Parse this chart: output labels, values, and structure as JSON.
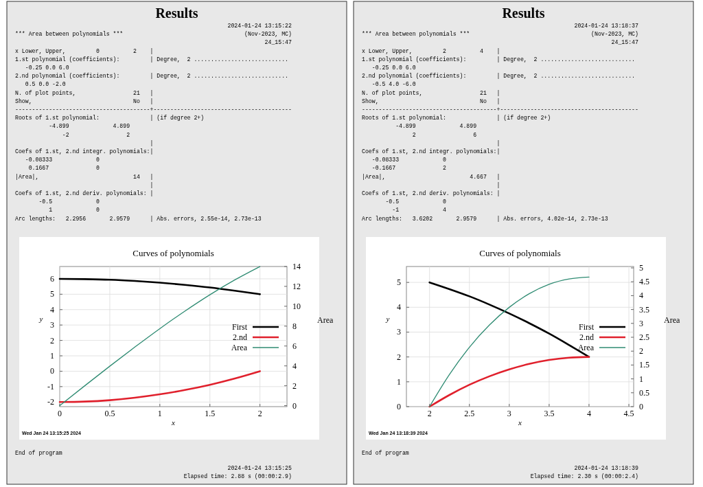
{
  "chart_data": [
    {
      "type": "line",
      "title": "Curves of polynomials",
      "xlabel": "x",
      "ylabel": "y",
      "y2label": "Area",
      "x": [
        0,
        0.25,
        0.5,
        0.75,
        1,
        1.25,
        1.5,
        1.75,
        2
      ],
      "series": [
        {
          "name": "First",
          "color": "#000000",
          "values": [
            6,
            5.98,
            5.94,
            5.86,
            5.75,
            5.61,
            5.44,
            5.23,
            5
          ]
        },
        {
          "name": "2.nd",
          "color": "#e0202c",
          "values": [
            -2,
            -1.97,
            -1.88,
            -1.72,
            -1.5,
            -1.22,
            -0.88,
            -0.47,
            0
          ]
        },
        {
          "name": "Area",
          "color": "#2e8b72",
          "axis": "y2",
          "values": [
            0,
            2,
            3.97,
            5.89,
            7.75,
            9.51,
            11.16,
            12.66,
            14
          ]
        }
      ],
      "xlim": [
        0,
        2.27
      ],
      "xticks": [
        0,
        0.5,
        1,
        1.5,
        2
      ],
      "ylim": [
        -2.3,
        6.8
      ],
      "yticks": [
        -2,
        -1,
        0,
        1,
        2,
        3,
        4,
        5,
        6
      ],
      "y2lim": [
        -0.1,
        14
      ],
      "y2ticks": [
        0,
        2,
        4,
        6,
        8,
        10,
        12,
        14
      ],
      "grid": true,
      "legend": "right",
      "annotations": [
        "Results",
        "                                                               2024-01-24 13:15:22",
        "*** Area between polynomials ***                                    (Nov-2023, MC)",
        "                                                                          24_15:47",
        "x Lower, Upper,         0          2    |",
        "1.st polynomial (coefficients):         | Degree,  2 ............................",
        "   -0.25 0.0 6.0",
        "2.nd polynomial (coefficients):         | Degree,  2 ............................",
        "   0.5 0.0 -2.0",
        "N. of plot points,                 21   |",
        "Show,                              No   |",
        "----------------------------------------+-----------------------------------------",
        "Roots of 1.st polynomial:               | (if degree 2+)",
        "          -4.899             4.899",
        "              -2                 2",
        "                                        |",
        "Coefs of 1.st, 2.nd integr. polynomials:|",
        "   -0.08333             0",
        "    0.1667              0",
        "|Area|,                            14   |",
        "                                        |",
        "Coefs of 1.st, 2.nd deriv. polynomials: |",
        "       -0.5             0",
        "          1             0",
        "Arc lengths:   2.2956       2.9579      | Abs. errors, 2.55e-14, 2.73e-13",
        "Wed Jan 24 13:15:25 2024",
        "End of program",
        "                                                               2024-01-24 13:15:25",
        "                                                  Elapsed time: 2.88 s (00:00:2.9)"
      ]
    },
    {
      "type": "line",
      "title": "Curves of polynomials",
      "xlabel": "x",
      "ylabel": "y",
      "y2label": "Area",
      "x": [
        2,
        2.25,
        2.5,
        2.75,
        3,
        3.25,
        3.5,
        3.75,
        4
      ],
      "series": [
        {
          "name": "First",
          "color": "#000000",
          "values": [
            5,
            4.73,
            4.44,
            4.11,
            3.75,
            3.36,
            2.94,
            2.48,
            2
          ]
        },
        {
          "name": "2.nd",
          "color": "#e0202c",
          "values": [
            0,
            0.47,
            0.88,
            1.22,
            1.5,
            1.72,
            1.88,
            1.97,
            2
          ]
        },
        {
          "name": "Area",
          "color": "#2e8b72",
          "axis": "y2",
          "values": [
            0,
            1.16,
            2.14,
            2.94,
            3.58,
            4.07,
            4.41,
            4.6,
            4.67
          ]
        }
      ],
      "xlim": [
        1.71,
        4.56
      ],
      "xticks": [
        2,
        2.5,
        3,
        3.5,
        4,
        4.5
      ],
      "ylim": [
        0,
        5.64
      ],
      "yticks": [
        0,
        1,
        2,
        3,
        4,
        5
      ],
      "y2lim": [
        0,
        5.05
      ],
      "y2ticks": [
        0,
        0.5,
        1,
        1.5,
        2,
        2.5,
        3,
        3.5,
        4,
        4.5,
        5
      ],
      "grid": true,
      "legend": "right",
      "annotations": [
        "Results",
        "                                                               2024-01-24 13:18:37",
        "*** Area between polynomials ***                                    (Nov-2023, MC)",
        "                                                                          24_15:47",
        "x Lower, Upper,         2          4    |",
        "1.st polynomial (coefficients):         | Degree,  2 ............................",
        "   -0.25 0.0 6.0",
        "2.nd polynomial (coefficients):         | Degree,  2 ............................",
        "   -0.5 4.0 -6.0",
        "N. of plot points,                 21   |",
        "Show,                              No   |",
        "----------------------------------------+-----------------------------------------",
        "Roots of 1.st polynomial:               | (if degree 2+)",
        "          -4.899             4.899",
        "               2                 6",
        "                                        |",
        "Coefs of 1.st, 2.nd integr. polynomials:|",
        "   -0.08333             0",
        "   -0.1667              2",
        "|Area|,                         4.667   |",
        "                                        |",
        "Coefs of 1.st, 2.nd deriv. polynomials: |",
        "       -0.5             0",
        "         -1             4",
        "Arc lengths:   3.6202       2.9579      | Abs. errors, 4.02e-14, 2.73e-13",
        "Wed Jan 24 13:18:39 2024",
        "End of program",
        "                                                               2024-01-24 13:18:39",
        "                                                  Elapsed time: 2.30 s (00:00:2.4)"
      ]
    }
  ]
}
